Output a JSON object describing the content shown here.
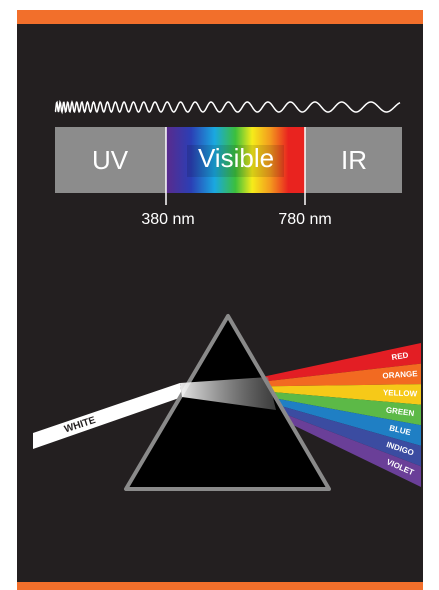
{
  "spectrum": {
    "bands": [
      "UV",
      "Visible",
      "IR"
    ],
    "markers": [
      "380 nm",
      "780 nm"
    ]
  },
  "prism": {
    "input_label": "WHITE",
    "colors": [
      {
        "label": "RED",
        "color": "#e31e24"
      },
      {
        "label": "ORANGE",
        "color": "#f26a21"
      },
      {
        "label": "YELLOW",
        "color": "#f6c918"
      },
      {
        "label": "GREEN",
        "color": "#5cb947"
      },
      {
        "label": "BLUE",
        "color": "#1f7fc4"
      },
      {
        "label": "INDIGO",
        "color": "#3b4ca1"
      },
      {
        "label": "VIOLET",
        "color": "#6a3f98"
      }
    ]
  }
}
